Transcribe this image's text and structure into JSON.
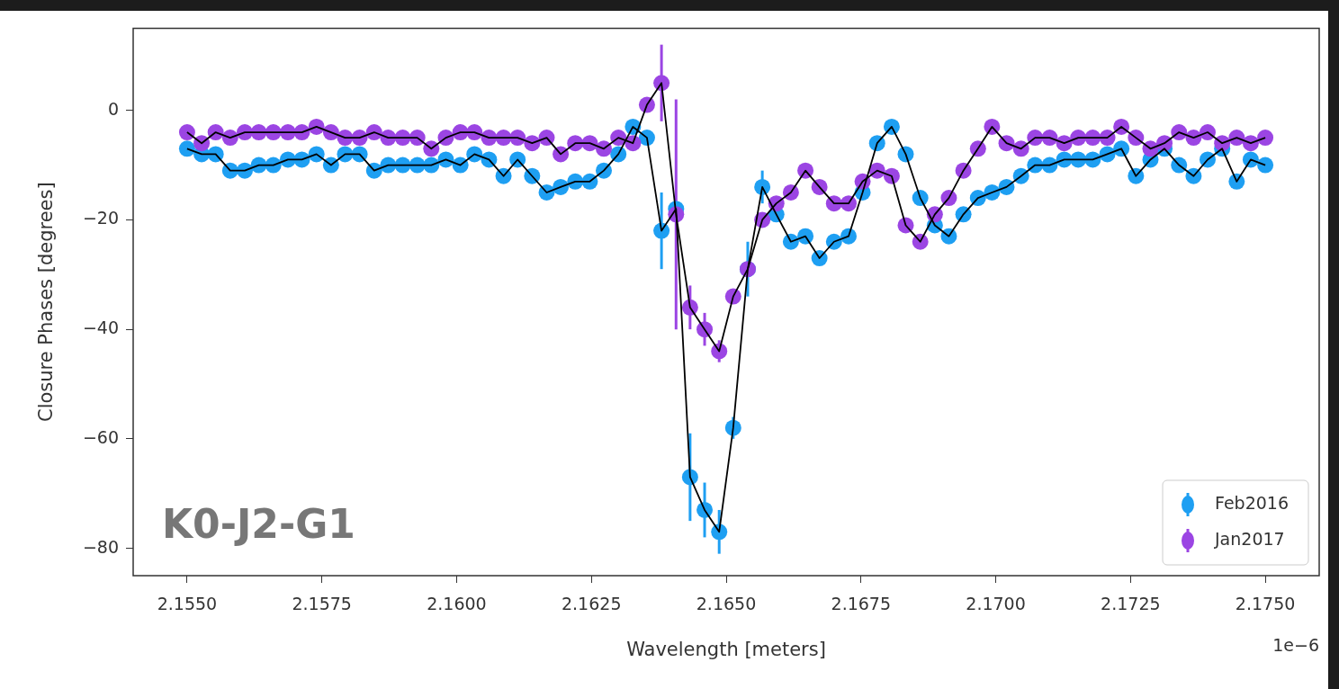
{
  "chart_data": {
    "type": "scatter",
    "xlabel": "Wavelength [meters]",
    "ylabel": "Closure Phases [degrees]",
    "annotations": [
      "K0-J2-G1",
      "1e−6"
    ],
    "legend": "bottom right",
    "marker": "circle",
    "xlim": [
      2.154,
      2.176
    ],
    "xticks": [
      {
        "value": 2.155,
        "label": "2.1550"
      },
      {
        "value": 2.1575,
        "label": "2.1575"
      },
      {
        "value": 2.16,
        "label": "2.1600"
      },
      {
        "value": 2.1625,
        "label": "2.1625"
      },
      {
        "value": 2.165,
        "label": "2.1650"
      },
      {
        "value": 2.1675,
        "label": "2.1675"
      },
      {
        "value": 2.17,
        "label": "2.1700"
      },
      {
        "value": 2.1725,
        "label": "2.1725"
      },
      {
        "value": 2.175,
        "label": "2.1750"
      }
    ],
    "ylim": [
      -85,
      15
    ],
    "yticks": [
      {
        "value": -80,
        "label": "−80"
      },
      {
        "value": -60,
        "label": "−60"
      },
      {
        "value": -40,
        "label": "−40"
      },
      {
        "value": -20,
        "label": "−20"
      },
      0
    ],
    "x": [
      2.155,
      2.15527,
      2.15553,
      2.1558,
      2.15607,
      2.15633,
      2.1566,
      2.15687,
      2.15713,
      2.1574,
      2.15767,
      2.15793,
      2.1582,
      2.15847,
      2.15873,
      2.159,
      2.15927,
      2.15953,
      2.1598,
      2.16007,
      2.16033,
      2.1606,
      2.16087,
      2.16113,
      2.1614,
      2.16167,
      2.16193,
      2.1622,
      2.16247,
      2.16273,
      2.163,
      2.16327,
      2.16353,
      2.1638,
      2.16407,
      2.16433,
      2.1646,
      2.16487,
      2.16513,
      2.1654,
      2.16567,
      2.16593,
      2.1662,
      2.16647,
      2.16673,
      2.167,
      2.16727,
      2.16753,
      2.1678,
      2.16807,
      2.16833,
      2.1686,
      2.16887,
      2.16913,
      2.1694,
      2.16967,
      2.16993,
      2.1702,
      2.17047,
      2.17073,
      2.171,
      2.17127,
      2.17153,
      2.1718,
      2.17207,
      2.17233,
      2.1726,
      2.17287,
      2.17313,
      2.1734,
      2.17367,
      2.17393,
      2.1742,
      2.17447,
      2.17473,
      2.175
    ],
    "series": [
      {
        "type": "line",
        "marker": "none",
        "color": "#000000",
        "values": [
          -7,
          -8,
          -8,
          -11,
          -11,
          -10,
          -10,
          -9,
          -9,
          -8,
          -10,
          -8,
          -8,
          -11,
          -10,
          -10,
          -10,
          -10,
          -9,
          -10,
          -8,
          -9,
          -12,
          -9,
          -12,
          -15,
          -14,
          -13,
          -13,
          -11,
          -8,
          -3,
          -5,
          -22,
          -18,
          -67,
          -73,
          -77,
          -58,
          -29,
          -14,
          -19,
          -24,
          -23,
          -27,
          -24,
          -23,
          -15,
          -6,
          -3,
          -8,
          -16,
          -21,
          -23,
          -19,
          -16,
          -15,
          -14,
          -12,
          -10,
          -10,
          -9,
          -9,
          -9,
          -8,
          -7,
          -12,
          -9,
          -7,
          -10,
          -12,
          -9,
          -7,
          -13,
          -9,
          -10
        ]
      },
      {
        "type": "line",
        "marker": "none",
        "color": "#000000",
        "values": [
          -4,
          -6,
          -4,
          -5,
          -4,
          -4,
          -4,
          -4,
          -4,
          -3,
          -4,
          -5,
          -5,
          -4,
          -5,
          -5,
          -5,
          -7,
          -5,
          -4,
          -4,
          -5,
          -5,
          -5,
          -6,
          -5,
          -8,
          -6,
          -6,
          -7,
          -5,
          -6,
          1,
          5,
          -19,
          -36,
          -40,
          -44,
          -34,
          -29,
          -20,
          -17,
          -15,
          -11,
          -14,
          -17,
          -17,
          -13,
          -11,
          -12,
          -21,
          -24,
          -19,
          -16,
          -11,
          -7,
          -3,
          -6,
          -7,
          -5,
          -5,
          -6,
          -5,
          -5,
          -5,
          -3,
          -5,
          -7,
          -6,
          -4,
          -5,
          -4,
          -6,
          -5,
          -6,
          -5
        ]
      },
      {
        "name": "Feb2016",
        "color": "#1e9ff2",
        "values": [
          -7,
          -8,
          -8,
          -11,
          -11,
          -10,
          -10,
          -9,
          -9,
          -8,
          -10,
          -8,
          -8,
          -11,
          -10,
          -10,
          -10,
          -10,
          -9,
          -10,
          -8,
          -9,
          -12,
          -9,
          -12,
          -15,
          -14,
          -13,
          -13,
          -11,
          -8,
          -3,
          -5,
          -22,
          -18,
          -67,
          -73,
          -77,
          -58,
          -29,
          -14,
          -19,
          -24,
          -23,
          -27,
          -24,
          -23,
          -15,
          -6,
          -3,
          -8,
          -16,
          -21,
          -23,
          -19,
          -16,
          -15,
          -14,
          -12,
          -10,
          -10,
          -9,
          -9,
          -9,
          -8,
          -7,
          -12,
          -9,
          -7,
          -10,
          -12,
          -9,
          -7,
          -13,
          -9,
          -10
        ],
        "errors": [
          null,
          null,
          null,
          null,
          null,
          null,
          null,
          null,
          null,
          null,
          null,
          null,
          null,
          null,
          null,
          null,
          null,
          null,
          null,
          null,
          null,
          null,
          null,
          null,
          null,
          null,
          null,
          null,
          null,
          null,
          null,
          null,
          null,
          7,
          null,
          8,
          5,
          4,
          2,
          5,
          3,
          null,
          null,
          null,
          null,
          null,
          null,
          null,
          null,
          null,
          null,
          null,
          null,
          null,
          null,
          null,
          null,
          null,
          null,
          null,
          null,
          null,
          null,
          null,
          null,
          null,
          null,
          null,
          null,
          null,
          null,
          null,
          null,
          null,
          null,
          null
        ]
      },
      {
        "name": "Jan2017",
        "color": "#9b45e3",
        "values": [
          -4,
          -6,
          -4,
          -5,
          -4,
          -4,
          -4,
          -4,
          -4,
          -3,
          -4,
          -5,
          -5,
          -4,
          -5,
          -5,
          -5,
          -7,
          -5,
          -4,
          -4,
          -5,
          -5,
          -5,
          -6,
          -5,
          -8,
          -6,
          -6,
          -7,
          -5,
          -6,
          1,
          5,
          -19,
          -36,
          -40,
          -44,
          -34,
          -29,
          -20,
          -17,
          -15,
          -11,
          -14,
          -17,
          -17,
          -13,
          -11,
          -12,
          -21,
          -24,
          -19,
          -16,
          -11,
          -7,
          -3,
          -6,
          -7,
          -5,
          -5,
          -6,
          -5,
          -5,
          -5,
          -3,
          -5,
          -7,
          -6,
          -4,
          -5,
          -4,
          -6,
          -5,
          -6,
          -5
        ],
        "errors": [
          null,
          null,
          null,
          null,
          null,
          null,
          null,
          null,
          null,
          null,
          null,
          null,
          null,
          null,
          null,
          null,
          null,
          null,
          null,
          null,
          null,
          null,
          null,
          null,
          null,
          null,
          null,
          null,
          null,
          null,
          null,
          null,
          null,
          7,
          21,
          4,
          3,
          2,
          null,
          null,
          null,
          null,
          null,
          null,
          null,
          null,
          null,
          null,
          null,
          null,
          null,
          null,
          null,
          null,
          null,
          null,
          null,
          null,
          null,
          null,
          null,
          null,
          null,
          null,
          null,
          null,
          null,
          null,
          null,
          null,
          null,
          null,
          null,
          null,
          null,
          null
        ]
      }
    ]
  }
}
